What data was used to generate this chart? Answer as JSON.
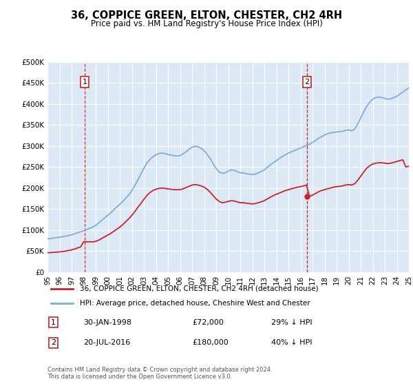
{
  "title": "36, COPPICE GREEN, ELTON, CHESTER, CH2 4RH",
  "subtitle": "Price paid vs. HM Land Registry's House Price Index (HPI)",
  "ylabel_ticks": [
    "£0",
    "£50K",
    "£100K",
    "£150K",
    "£200K",
    "£250K",
    "£300K",
    "£350K",
    "£400K",
    "£450K",
    "£500K"
  ],
  "ylim": [
    0,
    500000
  ],
  "ytick_values": [
    0,
    50000,
    100000,
    150000,
    200000,
    250000,
    300000,
    350000,
    400000,
    450000,
    500000
  ],
  "xmin_year": 1995,
  "xmax_year": 2025,
  "xticks": [
    1995,
    1996,
    1997,
    1998,
    1999,
    2000,
    2001,
    2002,
    2003,
    2004,
    2005,
    2006,
    2007,
    2008,
    2009,
    2010,
    2011,
    2012,
    2013,
    2014,
    2015,
    2016,
    2017,
    2018,
    2019,
    2020,
    2021,
    2022,
    2023,
    2024,
    2025
  ],
  "hpi_color": "#7bafd4",
  "price_color": "#cc2222",
  "vline_color": "#cc2222",
  "annotation_box_color": "#cc2222",
  "bg_color": "#dce8f5",
  "grid_color": "#ffffff",
  "legend_label_price": "36, COPPICE GREEN, ELTON, CHESTER, CH2 4RH (detached house)",
  "legend_label_hpi": "HPI: Average price, detached house, Cheshire West and Chester",
  "sale1_year": 1998.08,
  "sale1_price": 72000,
  "sale1_label": "1",
  "sale1_date": "30-JAN-1998",
  "sale1_pct": "29% ↓ HPI",
  "sale2_year": 2016.55,
  "sale2_price": 180000,
  "sale2_label": "2",
  "sale2_date": "20-JUL-2016",
  "sale2_pct": "40% ↓ HPI",
  "footer": "Contains HM Land Registry data © Crown copyright and database right 2024.\nThis data is licensed under the Open Government Licence v3.0.",
  "hpi_data_x": [
    1995.0,
    1995.25,
    1995.5,
    1995.75,
    1996.0,
    1996.25,
    1996.5,
    1996.75,
    1997.0,
    1997.25,
    1997.5,
    1997.75,
    1998.0,
    1998.25,
    1998.5,
    1998.75,
    1999.0,
    1999.25,
    1999.5,
    1999.75,
    2000.0,
    2000.25,
    2000.5,
    2000.75,
    2001.0,
    2001.25,
    2001.5,
    2001.75,
    2002.0,
    2002.25,
    2002.5,
    2002.75,
    2003.0,
    2003.25,
    2003.5,
    2003.75,
    2004.0,
    2004.25,
    2004.5,
    2004.75,
    2005.0,
    2005.25,
    2005.5,
    2005.75,
    2006.0,
    2006.25,
    2006.5,
    2006.75,
    2007.0,
    2007.25,
    2007.5,
    2007.75,
    2008.0,
    2008.25,
    2008.5,
    2008.75,
    2009.0,
    2009.25,
    2009.5,
    2009.75,
    2010.0,
    2010.25,
    2010.5,
    2010.75,
    2011.0,
    2011.25,
    2011.5,
    2011.75,
    2012.0,
    2012.25,
    2012.5,
    2012.75,
    2013.0,
    2013.25,
    2013.5,
    2013.75,
    2014.0,
    2014.25,
    2014.5,
    2014.75,
    2015.0,
    2015.25,
    2015.5,
    2015.75,
    2016.0,
    2016.25,
    2016.5,
    2016.75,
    2017.0,
    2017.25,
    2017.5,
    2017.75,
    2018.0,
    2018.25,
    2018.5,
    2018.75,
    2019.0,
    2019.25,
    2019.5,
    2019.75,
    2020.0,
    2020.25,
    2020.5,
    2020.75,
    2021.0,
    2021.25,
    2021.5,
    2021.75,
    2022.0,
    2022.25,
    2022.5,
    2022.75,
    2023.0,
    2023.25,
    2023.5,
    2023.75,
    2024.0,
    2024.25,
    2024.5,
    2024.75,
    2025.0
  ],
  "hpi_data_y": [
    79000,
    80000,
    81000,
    82000,
    83000,
    84000,
    85500,
    87000,
    89000,
    91000,
    93500,
    96000,
    98500,
    101000,
    104000,
    107000,
    111000,
    117000,
    123000,
    129000,
    135000,
    141000,
    148000,
    155000,
    161000,
    168000,
    176000,
    184000,
    193000,
    206000,
    219000,
    233000,
    247000,
    259000,
    268000,
    274000,
    279000,
    282000,
    283000,
    282000,
    280000,
    278000,
    277000,
    276000,
    277000,
    281000,
    286000,
    292000,
    297000,
    299000,
    298000,
    294000,
    289000,
    280000,
    270000,
    258000,
    246000,
    238000,
    235000,
    236000,
    240000,
    243000,
    242000,
    239000,
    236000,
    236000,
    234000,
    233000,
    232000,
    233000,
    236000,
    239000,
    243000,
    249000,
    255000,
    260000,
    265000,
    270000,
    275000,
    279000,
    283000,
    286000,
    289000,
    292000,
    295000,
    298000,
    301000,
    304000,
    308000,
    313000,
    318000,
    322000,
    326000,
    329000,
    331000,
    332000,
    333000,
    334000,
    335000,
    337000,
    338000,
    336000,
    340000,
    352000,
    366000,
    381000,
    394000,
    404000,
    411000,
    415000,
    416000,
    415000,
    413000,
    411000,
    412000,
    415000,
    418000,
    423000,
    428000,
    433000,
    438000
  ],
  "price_data_x": [
    1995.0,
    1995.25,
    1995.5,
    1995.75,
    1996.0,
    1996.25,
    1996.5,
    1996.75,
    1997.0,
    1997.25,
    1997.5,
    1997.75,
    1998.0,
    1998.25,
    1998.5,
    1998.75,
    1999.0,
    1999.25,
    1999.5,
    1999.75,
    2000.0,
    2000.25,
    2000.5,
    2000.75,
    2001.0,
    2001.25,
    2001.5,
    2001.75,
    2002.0,
    2002.25,
    2002.5,
    2002.75,
    2003.0,
    2003.25,
    2003.5,
    2003.75,
    2004.0,
    2004.25,
    2004.5,
    2004.75,
    2005.0,
    2005.25,
    2005.5,
    2005.75,
    2006.0,
    2006.25,
    2006.5,
    2006.75,
    2007.0,
    2007.25,
    2007.5,
    2007.75,
    2008.0,
    2008.25,
    2008.5,
    2008.75,
    2009.0,
    2009.25,
    2009.5,
    2009.75,
    2010.0,
    2010.25,
    2010.5,
    2010.75,
    2011.0,
    2011.25,
    2011.5,
    2011.75,
    2012.0,
    2012.25,
    2012.5,
    2012.75,
    2013.0,
    2013.25,
    2013.5,
    2013.75,
    2014.0,
    2014.25,
    2014.5,
    2014.75,
    2015.0,
    2015.25,
    2015.5,
    2015.75,
    2016.0,
    2016.25,
    2016.5,
    2016.75,
    2017.0,
    2017.25,
    2017.5,
    2017.75,
    2018.0,
    2018.25,
    2018.5,
    2018.75,
    2019.0,
    2019.25,
    2019.5,
    2019.75,
    2020.0,
    2020.25,
    2020.5,
    2020.75,
    2021.0,
    2021.25,
    2021.5,
    2021.75,
    2022.0,
    2022.25,
    2022.5,
    2022.75,
    2023.0,
    2023.25,
    2023.5,
    2023.75,
    2024.0,
    2024.25,
    2024.5,
    2024.75,
    2025.0
  ],
  "price_data_y": [
    46000,
    46500,
    47000,
    47500,
    48000,
    49000,
    50000,
    51500,
    53000,
    55000,
    57500,
    60000,
    72000,
    72000,
    72000,
    72000,
    73000,
    76000,
    80000,
    84000,
    88000,
    92000,
    97000,
    102000,
    107000,
    113000,
    120000,
    127000,
    135000,
    144000,
    154000,
    163000,
    173000,
    182000,
    189000,
    194000,
    197000,
    199000,
    200000,
    199000,
    198000,
    197000,
    196000,
    196000,
    196000,
    198000,
    201000,
    204000,
    207000,
    208000,
    207000,
    205000,
    202000,
    197000,
    190000,
    182000,
    174000,
    168000,
    165000,
    166000,
    168000,
    170000,
    169000,
    167000,
    165000,
    165000,
    164000,
    163000,
    162000,
    163000,
    165000,
    167000,
    170000,
    174000,
    178000,
    182000,
    185000,
    188000,
    191000,
    194000,
    196000,
    198000,
    200000,
    202000,
    203000,
    205000,
    207000,
    180000,
    183000,
    187000,
    191000,
    194000,
    196000,
    198000,
    200000,
    202000,
    203000,
    204000,
    205000,
    207000,
    208000,
    207000,
    210000,
    218000,
    228000,
    238000,
    247000,
    253000,
    257000,
    259000,
    260000,
    260000,
    259000,
    258000,
    259000,
    261000,
    263000,
    265000,
    267000,
    250000,
    252000
  ]
}
